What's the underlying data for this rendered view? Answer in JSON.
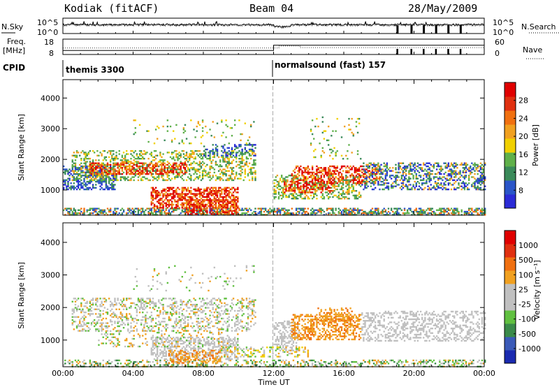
{
  "header": {
    "station": "Kodiak (fitACF)",
    "beam": "Beam 04",
    "date": "28/May/2009"
  },
  "colors": {
    "power_scale": [
      "#2b2bd6",
      "#2a55c8",
      "#3a8a5a",
      "#5fb04a",
      "#f0d000",
      "#f0a020",
      "#f07010",
      "#e03010",
      "#e00000"
    ],
    "velocity_scale": [
      "#1a2ab0",
      "#3a5ab8",
      "#3a8a4a",
      "#60c040",
      "#c0c0c0",
      "#c0c0c0",
      "#f0a020",
      "#f07010",
      "#e03010",
      "#e00000"
    ]
  },
  "chart_data": [
    {
      "type": "line",
      "panel": "nsky-nsearch",
      "left_label": "N.Sky",
      "right_label": "N.Search",
      "left_ticks": [
        "10^5",
        "10^0"
      ],
      "right_ticks": [
        "10^5",
        "10^0"
      ],
      "x_ticks": [
        "00:00",
        "04:00",
        "08:00",
        "12:00",
        "16:00",
        "20:00",
        "00:00"
      ]
    },
    {
      "type": "line",
      "panel": "freq-nave",
      "left_label_line1": "Freq.",
      "left_label_line2": "[MHz]",
      "right_label": "Nave",
      "left_ticks": [
        18,
        8
      ],
      "right_ticks": [
        60,
        0
      ],
      "ylim_left": [
        8,
        18
      ],
      "ylim_right": [
        0,
        60
      ]
    },
    {
      "type": "table",
      "panel": "cpid",
      "label": "CPID",
      "segments": [
        {
          "name": "themis 3300",
          "start_hour": 0
        },
        {
          "name": "normalsound (fast) 157",
          "start_hour": 12
        }
      ]
    },
    {
      "type": "heatmap",
      "panel": "power",
      "ylabel": "Slant Range [km]",
      "y_ticks": [
        1000,
        2000,
        3000,
        4000
      ],
      "ylim": [
        180,
        4600
      ],
      "xlim": [
        0,
        24
      ],
      "x_ticks": [
        "00:00",
        "04:00",
        "08:00",
        "12:00",
        "16:00",
        "20:00",
        "00:00"
      ],
      "colorbar_label": "Power [dB]",
      "colorbar_ticks": [
        "8",
        "12",
        "16",
        "20",
        "24",
        "28"
      ],
      "colorbar_range": [
        4,
        32
      ]
    },
    {
      "type": "heatmap",
      "panel": "velocity",
      "ylabel": "Slant Range [km]",
      "y_ticks": [
        1000,
        2000,
        3000,
        4000
      ],
      "ylim": [
        180,
        4600
      ],
      "xlim": [
        0,
        24
      ],
      "x_ticks": [
        "00:00",
        "04:00",
        "08:00",
        "12:00",
        "16:00",
        "20:00",
        "00:00"
      ],
      "xlabel": "Time UT",
      "colorbar_label": "Velocity [m s⁻¹]",
      "colorbar_ticks": [
        "1000",
        "500",
        "100",
        "25",
        "-25",
        "-100",
        "-500",
        "-1000"
      ]
    }
  ]
}
